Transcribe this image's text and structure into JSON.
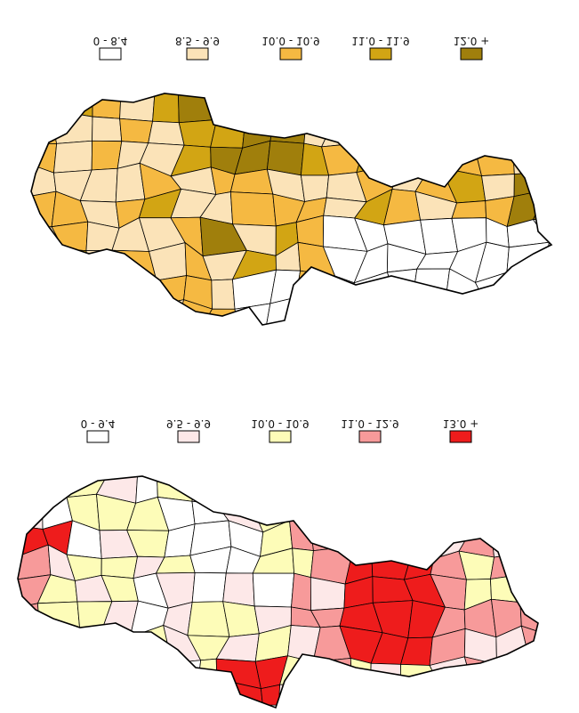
{
  "maps": [
    {
      "legend": [
        {
          "label": "0 - 8.4",
          "color": "#ffffff"
        },
        {
          "label": "8.5 - 9.9",
          "color": "#fbe3b8"
        },
        {
          "label": "10.0 - 10.9",
          "color": "#f5b942"
        },
        {
          "label": "11.0 - 11.9",
          "color": "#d2a514"
        },
        {
          "label": "12.0 +",
          "color": "#a07f0c"
        }
      ]
    },
    {
      "legend": [
        {
          "label": "0 - 9.4",
          "color": "#ffffff"
        },
        {
          "label": "9.5 - 9.9",
          "color": "#fde8e8"
        },
        {
          "label": "10.0 - 10.9",
          "color": "#fdfcb8"
        },
        {
          "label": "11.0 - 12.9",
          "color": "#f79a9a"
        },
        {
          "label": "13.0 +",
          "color": "#ee1c1c"
        }
      ]
    }
  ]
}
